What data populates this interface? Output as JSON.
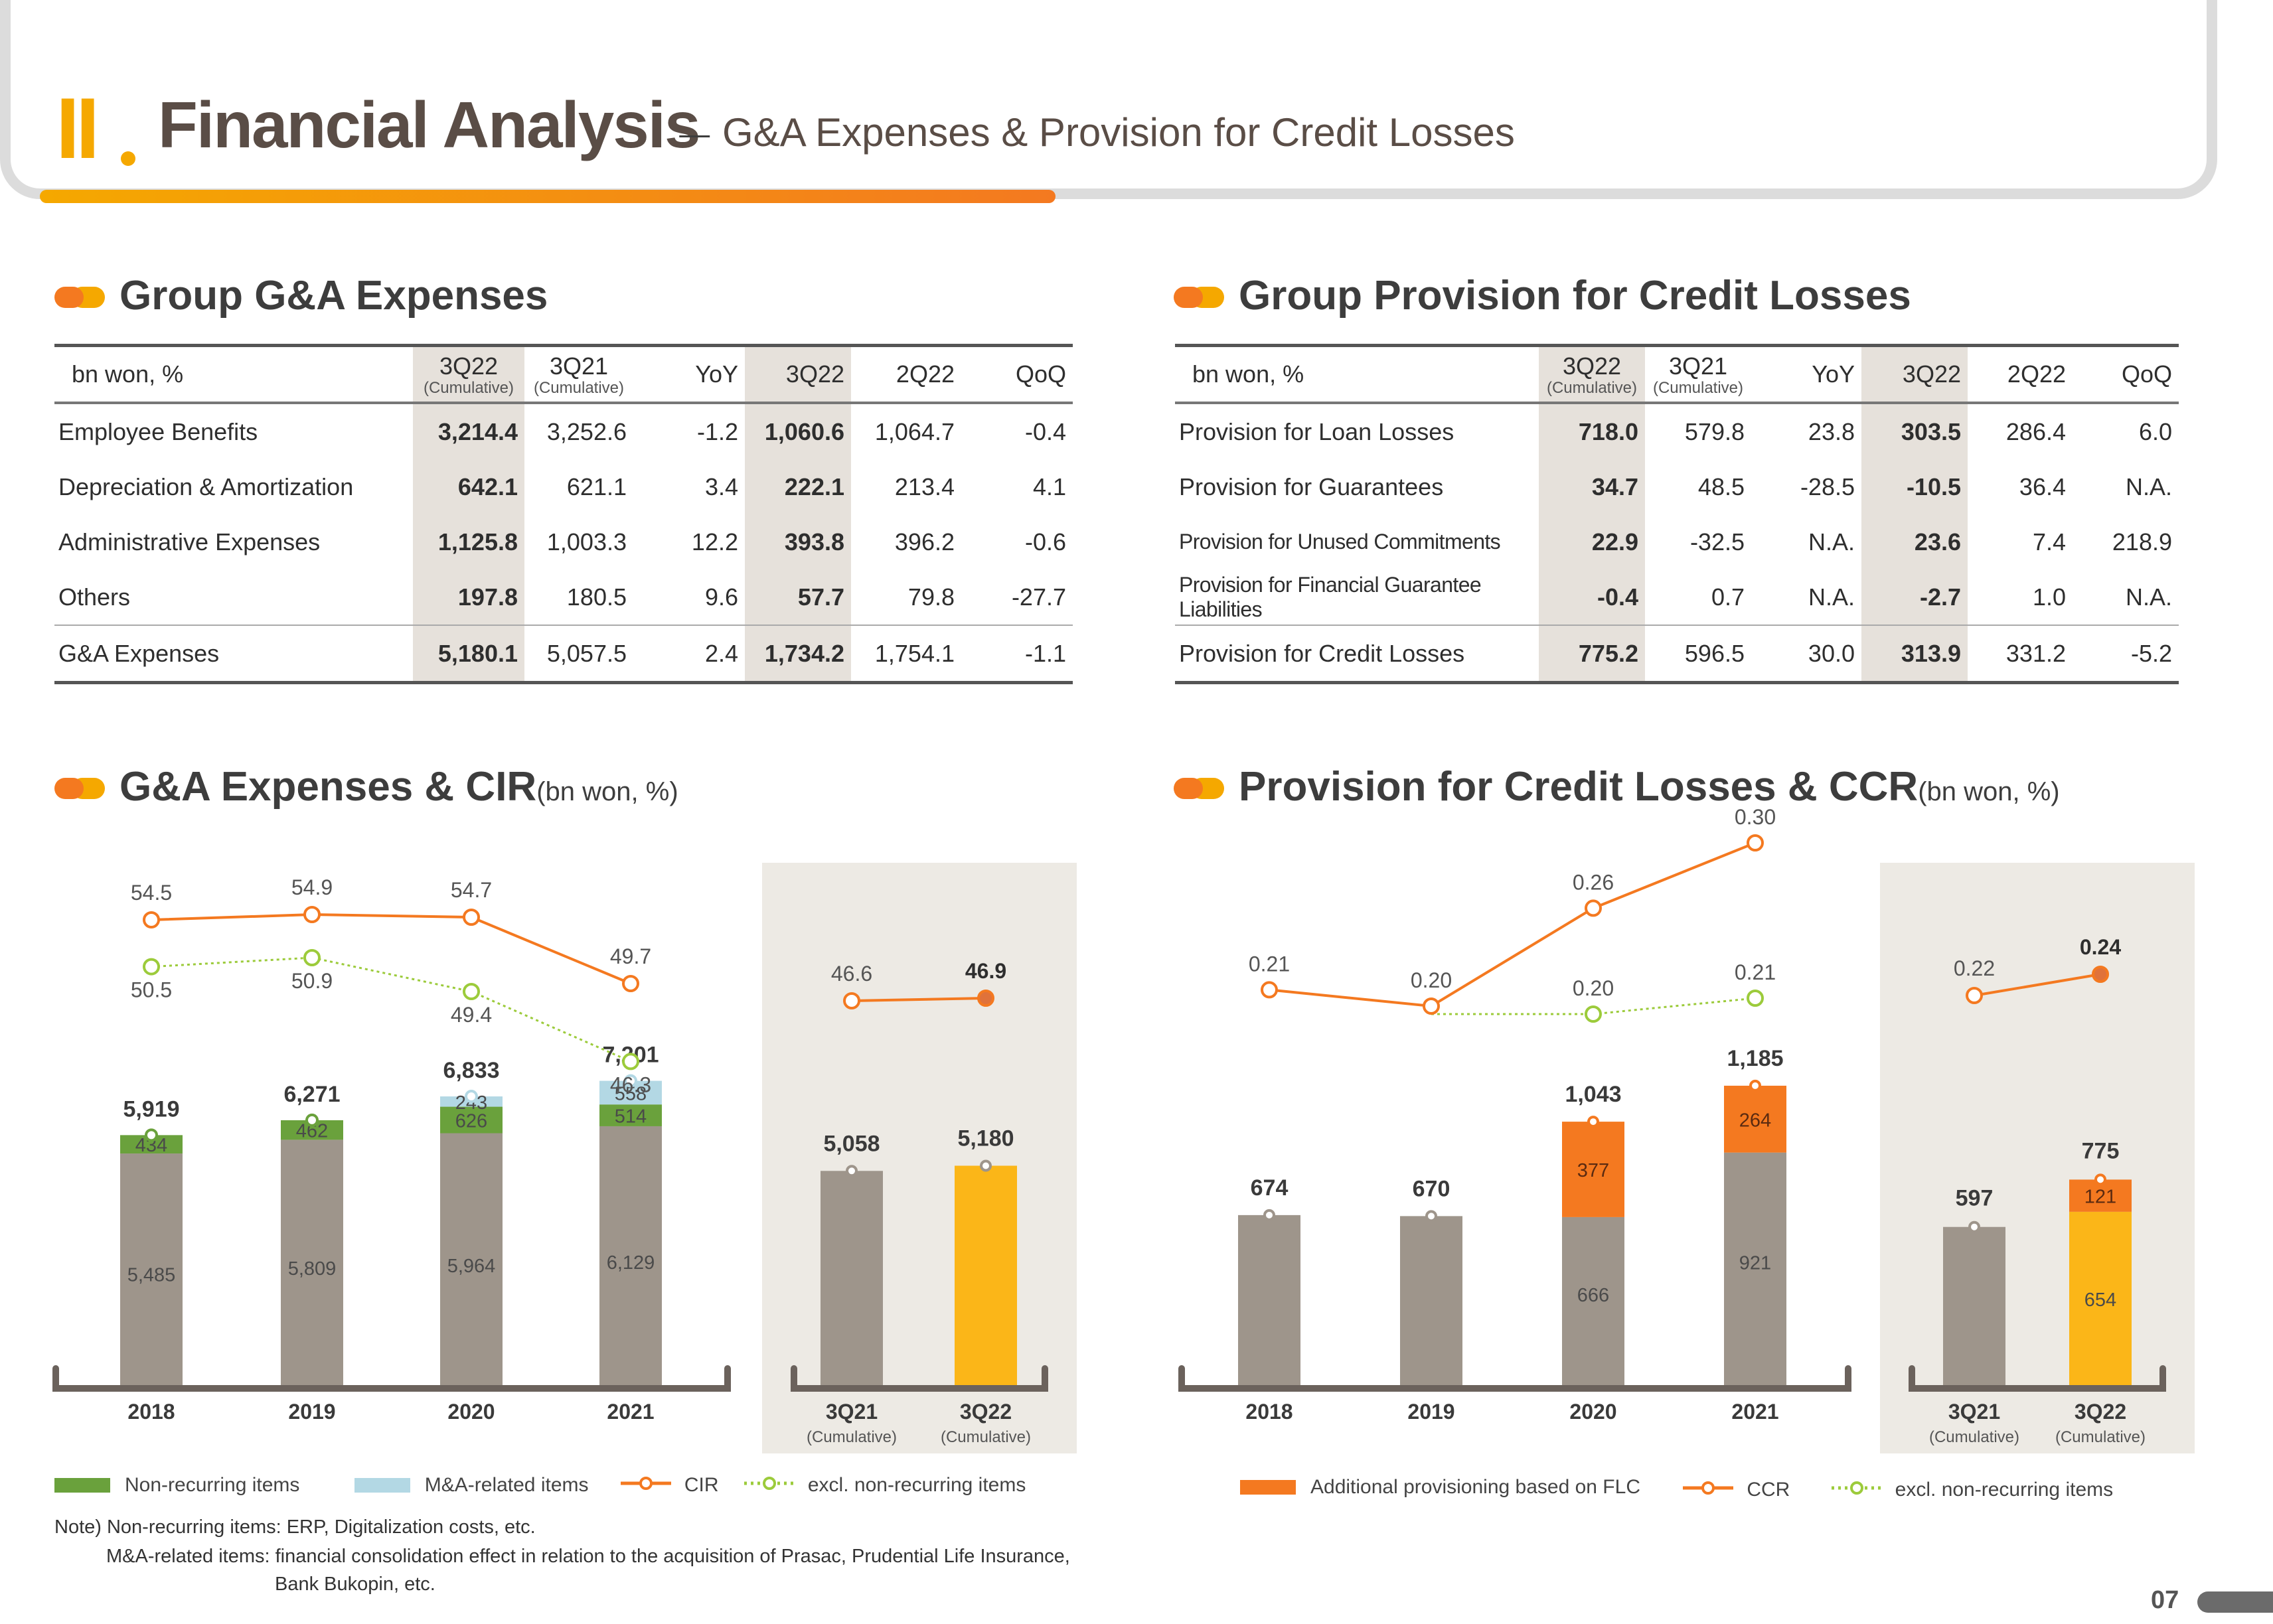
{
  "header": {
    "roman": "II",
    "title": "Financial Analysis",
    "separator": "_",
    "subtitle": "G&A Expenses & Provision for Credit Losses"
  },
  "ga_table": {
    "title": "Group G&A Expenses",
    "unit": "bn won, %",
    "columns": [
      {
        "label": "3Q22",
        "sub": "(Cumulative)"
      },
      {
        "label": "3Q21",
        "sub": "(Cumulative)"
      },
      {
        "label": "YoY",
        "sub": ""
      },
      {
        "label": "3Q22",
        "sub": ""
      },
      {
        "label": "2Q22",
        "sub": ""
      },
      {
        "label": "QoQ",
        "sub": ""
      }
    ],
    "rows": [
      {
        "label": "Employee Benefits",
        "cells": [
          "3,214.4",
          "3,252.6",
          "-1.2",
          "1,060.6",
          "1,064.7",
          "-0.4"
        ]
      },
      {
        "label": "Depreciation & Amortization",
        "cells": [
          "642.1",
          "621.1",
          "3.4",
          "222.1",
          "213.4",
          "4.1"
        ]
      },
      {
        "label": "Administrative Expenses",
        "cells": [
          "1,125.8",
          "1,003.3",
          "12.2",
          "393.8",
          "396.2",
          "-0.6"
        ]
      },
      {
        "label": "Others",
        "cells": [
          "197.8",
          "180.5",
          "9.6",
          "57.7",
          "79.8",
          "-27.7"
        ]
      },
      {
        "label": "G&A Expenses",
        "cells": [
          "5,180.1",
          "5,057.5",
          "2.4",
          "1,734.2",
          "1,754.1",
          "-1.1"
        ]
      }
    ]
  },
  "prov_table": {
    "title": "Group Provision for Credit Losses",
    "unit": "bn won, %",
    "columns": [
      {
        "label": "3Q22",
        "sub": "(Cumulative)"
      },
      {
        "label": "3Q21",
        "sub": "(Cumulative)"
      },
      {
        "label": "YoY",
        "sub": ""
      },
      {
        "label": "3Q22",
        "sub": ""
      },
      {
        "label": "2Q22",
        "sub": ""
      },
      {
        "label": "QoQ",
        "sub": ""
      }
    ],
    "rows": [
      {
        "label": "Provision for Loan Losses",
        "cells": [
          "718.0",
          "579.8",
          "23.8",
          "303.5",
          "286.4",
          "6.0"
        ]
      },
      {
        "label": "Provision for Guarantees",
        "cells": [
          "34.7",
          "48.5",
          "-28.5",
          "-10.5",
          "36.4",
          "N.A."
        ]
      },
      {
        "label": "Provision for Unused Commitments",
        "cells": [
          "22.9",
          "-32.5",
          "N.A.",
          "23.6",
          "7.4",
          "218.9"
        ]
      },
      {
        "label": "Provision for Financial Guarantee Liabilities",
        "cells": [
          "-0.4",
          "0.7",
          "N.A.",
          "-2.7",
          "1.0",
          "N.A."
        ]
      },
      {
        "label": "Provision for Credit Losses",
        "cells": [
          "775.2",
          "596.5",
          "30.0",
          "313.9",
          "331.2",
          "-5.2"
        ]
      }
    ]
  },
  "ga_chart_title": {
    "title": "G&A Expenses & CIR",
    "unit": "(bn won, %)"
  },
  "prov_chart_title": {
    "title": "Provision for Credit Losses & CCR",
    "unit": "(bn won, %)"
  },
  "chart_data": [
    {
      "type": "bar",
      "title": "G&A Expenses & CIR",
      "unit": "(bn won, %)",
      "categories": [
        "2018",
        "2019",
        "2020",
        "2021"
      ],
      "totals": [
        "5,919",
        "6,271",
        "6,833",
        "7,201"
      ],
      "series": [
        {
          "name": "base",
          "values": [
            5485,
            5809,
            5964,
            6129
          ]
        },
        {
          "name": "Non-recurring items",
          "values": [
            434,
            462,
            626,
            514
          ]
        },
        {
          "name": "M&A-related items",
          "values": [
            0,
            0,
            243,
            558
          ]
        }
      ],
      "lines": [
        {
          "name": "CIR",
          "values": [
            54.5,
            54.9,
            54.7,
            49.7
          ]
        },
        {
          "name": "excl. non-recurring items",
          "values": [
            50.5,
            50.9,
            49.4,
            46.3
          ]
        }
      ],
      "colors": {
        "base": "#9e958b",
        "Non-recurring items": "#6aa13c",
        "M&A-related items": "#b3d8e4",
        "CIR": "#f47920",
        "excl. non-recurring items": "#9ccb3b"
      }
    },
    {
      "type": "bar",
      "categories": [
        "3Q21",
        "3Q22"
      ],
      "category_subs": [
        "(Cumulative)",
        "(Cumulative)"
      ],
      "values": [
        5058,
        5180
      ],
      "totals": [
        "5,058",
        "5,180"
      ],
      "lines": [
        {
          "name": "CIR",
          "values": [
            46.6,
            46.9
          ]
        }
      ],
      "colors": {
        "3Q21": "#9e958b",
        "3Q22": "#fbb618",
        "CIR": "#f47920"
      }
    },
    {
      "type": "bar",
      "title": "Provision for Credit Losses & CCR",
      "unit": "(bn won, %)",
      "categories": [
        "2018",
        "2019",
        "2020",
        "2021"
      ],
      "totals": [
        "674",
        "670",
        "1,043",
        "1,185"
      ],
      "series": [
        {
          "name": "base",
          "values": [
            674,
            670,
            666,
            921
          ]
        },
        {
          "name": "Additional provisioning based on FLC",
          "values": [
            0,
            0,
            377,
            264
          ]
        }
      ],
      "lines": [
        {
          "name": "CCR",
          "values": [
            0.21,
            0.2,
            0.26,
            0.3
          ]
        },
        {
          "name": "excl. non-recurring items",
          "values": [
            null,
            0.2,
            0.2,
            0.21
          ]
        }
      ],
      "colors": {
        "base": "#9e958b",
        "Additional provisioning based on FLC": "#f47920",
        "CCR": "#f47920",
        "excl. non-recurring items": "#9ccb3b"
      }
    },
    {
      "type": "bar",
      "categories": [
        "3Q21",
        "3Q22"
      ],
      "category_subs": [
        "(Cumulative)",
        "(Cumulative)"
      ],
      "totals": [
        "597",
        "775"
      ],
      "series": [
        {
          "name": "base",
          "values": [
            597,
            654
          ]
        },
        {
          "name": "Additional provisioning based on FLC",
          "values": [
            0,
            121
          ]
        }
      ],
      "lines": [
        {
          "name": "CCR",
          "values": [
            0.22,
            0.24
          ]
        }
      ],
      "colors": {
        "base": "#9e958b",
        "3Q22base": "#fbb618",
        "Additional provisioning based on FLC": "#f47920",
        "CCR": "#f47920"
      }
    }
  ],
  "legend_left": {
    "nonrec": "Non-recurring items",
    "ma": "M&A-related items",
    "cir": "CIR",
    "excl": "excl. non-recurring items"
  },
  "legend_right": {
    "flc": "Additional provisioning based on FLC",
    "ccr": "CCR",
    "excl": "excl. non-recurring items"
  },
  "note": {
    "line1": "Note) Non-recurring items: ERP, Digitalization costs, etc.",
    "line2": "M&A-related items: financial consolidation effect in relation to the acquisition of Prasac, Prudential Life Insurance,",
    "line3": "Bank Bukopin, etc."
  },
  "page": "07"
}
